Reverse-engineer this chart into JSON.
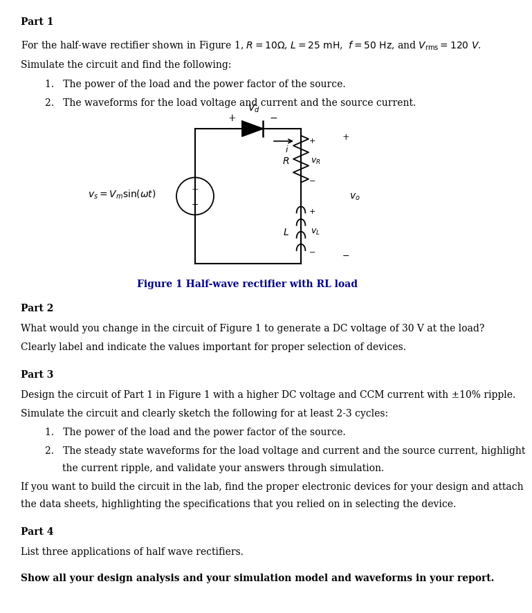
{
  "bg_color": "#ffffff",
  "fig_caption": "Figure 1 Half-wave rectifier with RL load",
  "fig_caption_color": "#00008B",
  "part2_line1": "What would you change in the circuit of Figure 1 to generate a DC voltage of 30 V at the load?",
  "part2_line2": "Clearly label and indicate the values important for proper selection of devices.",
  "part3_line1": "Design the circuit of Part 1 in Figure 1 with a higher DC voltage and CCM current with ±10% ripple.",
  "part3_line2": "Simulate the circuit and clearly sketch the following for at least 2-3 cycles:",
  "part3_line3": "If you want to build the circuit in the lab, find the proper electronic devices for your design and attach",
  "part3_line4": "the data sheets, highlighting the specifications that you relied on in selecting the device.",
  "part4_line1": "List three applications of half wave rectifiers.",
  "final_bold": "Show all your design analysis and your simulation model and waveforms in your report."
}
